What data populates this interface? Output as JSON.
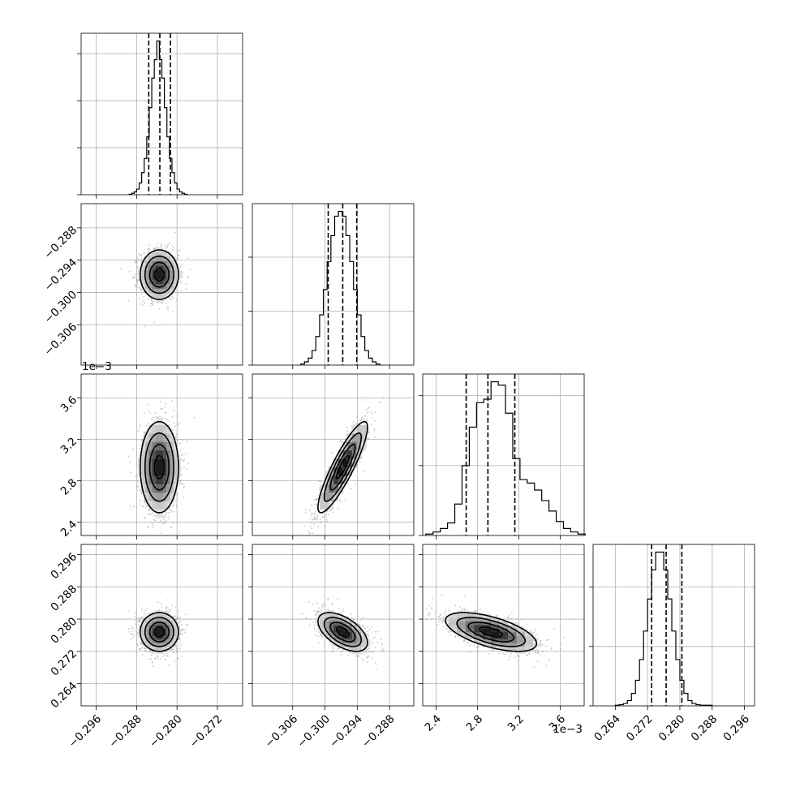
{
  "chart_data": {
    "type": "corner",
    "title": "",
    "grid": true,
    "parameters": [
      {
        "index": 0,
        "range": [
          -0.299,
          -0.267
        ],
        "ticks": [
          -0.296,
          -0.288,
          -0.28,
          -0.272
        ],
        "tick_labels": [
          "−0.296",
          "−0.288",
          "−0.280",
          "−0.272"
        ],
        "offset_label": "",
        "mean": -0.2835,
        "std": 0.0019,
        "quantiles": [
          -0.2856,
          -0.2834,
          -0.2813
        ],
        "hist": {
          "bin_edges": [
            -0.2895,
            -0.289,
            -0.2885,
            -0.288,
            -0.2875,
            -0.287,
            -0.2865,
            -0.286,
            -0.2855,
            -0.285,
            -0.2845,
            -0.284,
            -0.2835,
            -0.283,
            -0.2825,
            -0.282,
            -0.2815,
            -0.281,
            -0.2805,
            -0.28,
            -0.2795,
            -0.279,
            -0.2785,
            -0.278
          ],
          "counts": [
            1,
            3,
            6,
            12,
            25,
            47,
            77,
            123,
            185,
            248,
            287,
            327,
            287,
            248,
            185,
            123,
            77,
            47,
            25,
            12,
            6,
            3,
            1
          ]
        }
      },
      {
        "index": 1,
        "range": [
          -0.3135,
          -0.2835
        ],
        "ticks": [
          -0.306,
          -0.3,
          -0.294,
          -0.288
        ],
        "tick_labels": [
          "−0.306",
          "−0.300",
          "−0.294",
          "−0.288"
        ],
        "offset_label": "",
        "mean": -0.2967,
        "std": 0.0023,
        "quantiles": [
          -0.2994,
          -0.2967,
          -0.2941
        ],
        "hist": {
          "bin_edges": [
            -0.3045,
            -0.3038,
            -0.3031,
            -0.3024,
            -0.3017,
            -0.301,
            -0.3003,
            -0.2996,
            -0.2989,
            -0.2982,
            -0.2975,
            -0.2968,
            -0.2961,
            -0.2954,
            -0.2947,
            -0.294,
            -0.2933,
            -0.2926,
            -0.2919,
            -0.2912,
            -0.2905,
            -0.2898
          ],
          "counts": [
            2,
            6,
            13,
            27,
            53,
            93,
            140,
            192,
            240,
            276,
            285,
            276,
            240,
            192,
            140,
            93,
            53,
            27,
            13,
            6,
            2
          ]
        }
      },
      {
        "index": 2,
        "range": [
          2.27,
          3.83
        ],
        "ticks": [
          2.4,
          2.8,
          3.2,
          3.6
        ],
        "tick_labels": [
          "2.4",
          "2.8",
          "3.2",
          "3.6"
        ],
        "offset_label": "1e−3",
        "mean": 2.93,
        "std": 0.22,
        "quantiles": [
          2.69,
          2.9,
          3.16
        ],
        "hist": {
          "bin_edges": [
            2.3,
            2.37,
            2.44,
            2.51,
            2.58,
            2.65,
            2.72,
            2.79,
            2.86,
            2.93,
            3.0,
            3.07,
            3.14,
            3.21,
            3.28,
            3.35,
            3.42,
            3.49,
            3.56,
            3.63,
            3.7,
            3.77,
            3.84
          ],
          "counts": [
            2,
            5,
            10,
            18,
            45,
            100,
            155,
            190,
            195,
            220,
            215,
            175,
            110,
            80,
            75,
            65,
            50,
            35,
            20,
            10,
            5,
            2
          ]
        }
      },
      {
        "index": 3,
        "range": [
          0.2585,
          0.2985
        ],
        "ticks": [
          0.264,
          0.272,
          0.28,
          0.288,
          0.296
        ],
        "tick_labels": [
          "0.264",
          "0.272",
          "0.280",
          "0.288",
          "0.296"
        ],
        "offset_label": "",
        "mean": 0.2768,
        "std": 0.0024,
        "quantiles": [
          0.273,
          0.2766,
          0.2805
        ],
        "hist": {
          "bin_edges": [
            0.264,
            0.265,
            0.266,
            0.267,
            0.268,
            0.269,
            0.27,
            0.271,
            0.272,
            0.273,
            0.274,
            0.275,
            0.276,
            0.277,
            0.278,
            0.279,
            0.28,
            0.281,
            0.282,
            0.283,
            0.284,
            0.285,
            0.286,
            0.287,
            0.288
          ],
          "counts": [
            1,
            2,
            4,
            9,
            21,
            43,
            78,
            126,
            180,
            229,
            259,
            259,
            229,
            180,
            126,
            78,
            43,
            21,
            9,
            4,
            2,
            1,
            1,
            1
          ]
        }
      }
    ],
    "correlations": [
      {
        "pair": [
          0,
          1
        ],
        "rho": 0.0
      },
      {
        "pair": [
          0,
          2
        ],
        "rho": 0.0
      },
      {
        "pair": [
          1,
          2
        ],
        "rho": 0.88
      },
      {
        "pair": [
          0,
          3
        ],
        "rho": 0.0
      },
      {
        "pair": [
          1,
          3
        ],
        "rho": -0.55
      },
      {
        "pair": [
          2,
          3
        ],
        "rho": -0.6
      }
    ],
    "contour_levels_sigma": [
      0.5,
      1.0,
      1.5,
      2.0
    ],
    "histogram_style": "step",
    "quantile_line_style": "dashed"
  }
}
